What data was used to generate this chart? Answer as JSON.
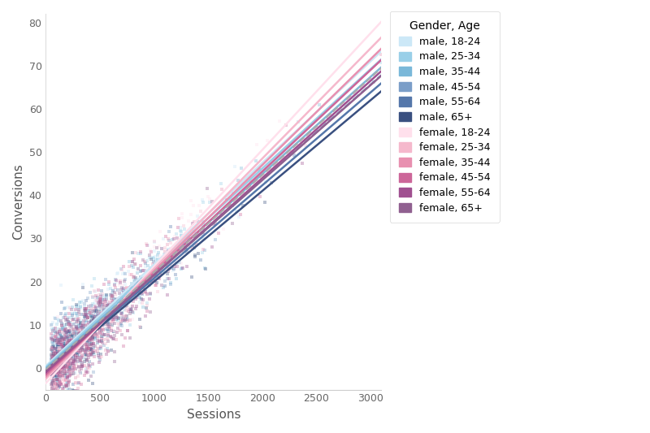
{
  "title": "",
  "xlabel": "Sessions",
  "ylabel": "Conversions",
  "legend_title": "Gender, Age",
  "xlim": [
    0,
    3100
  ],
  "ylim": [
    -5,
    82
  ],
  "xticks": [
    0,
    500,
    1000,
    1500,
    2000,
    2500,
    3000
  ],
  "yticks": [
    0,
    10,
    20,
    30,
    40,
    50,
    60,
    70,
    80
  ],
  "background_color": "#ffffff",
  "cohorts": [
    {
      "label": "male, 18-24",
      "color": "#cce8f7",
      "slope": 0.0235,
      "intercept": 0.5
    },
    {
      "label": "male, 25-34",
      "color": "#99cfe8",
      "slope": 0.023,
      "intercept": 0.2
    },
    {
      "label": "male, 35-44",
      "color": "#7ab8d9",
      "slope": 0.0225,
      "intercept": -0.1
    },
    {
      "label": "male, 45-54",
      "color": "#7b9ec8",
      "slope": 0.022,
      "intercept": -0.4
    },
    {
      "label": "male, 55-64",
      "color": "#5577aa",
      "slope": 0.0215,
      "intercept": -0.7
    },
    {
      "label": "male, 65+",
      "color": "#3a5080",
      "slope": 0.021,
      "intercept": -1.0
    },
    {
      "label": "female, 18-24",
      "color": "#ffe0ec",
      "slope": 0.027,
      "intercept": -3.5
    },
    {
      "label": "female, 25-34",
      "color": "#f5b8cc",
      "slope": 0.0255,
      "intercept": -2.5
    },
    {
      "label": "female, 35-44",
      "color": "#e890b0",
      "slope": 0.0245,
      "intercept": -2.0
    },
    {
      "label": "female, 45-54",
      "color": "#cc6699",
      "slope": 0.0235,
      "intercept": -1.5
    },
    {
      "label": "female, 55-64",
      "color": "#a05090",
      "slope": 0.0225,
      "intercept": -1.0
    },
    {
      "label": "female, 65+",
      "color": "#906090",
      "slope": 0.022,
      "intercept": -0.5
    }
  ],
  "n_points": 200,
  "x_max_scatter": 3100,
  "seed": 42,
  "scatter_alpha": 0.35,
  "scatter_size": 10,
  "line_width": 1.8,
  "dashed_label": "male, 45-54"
}
